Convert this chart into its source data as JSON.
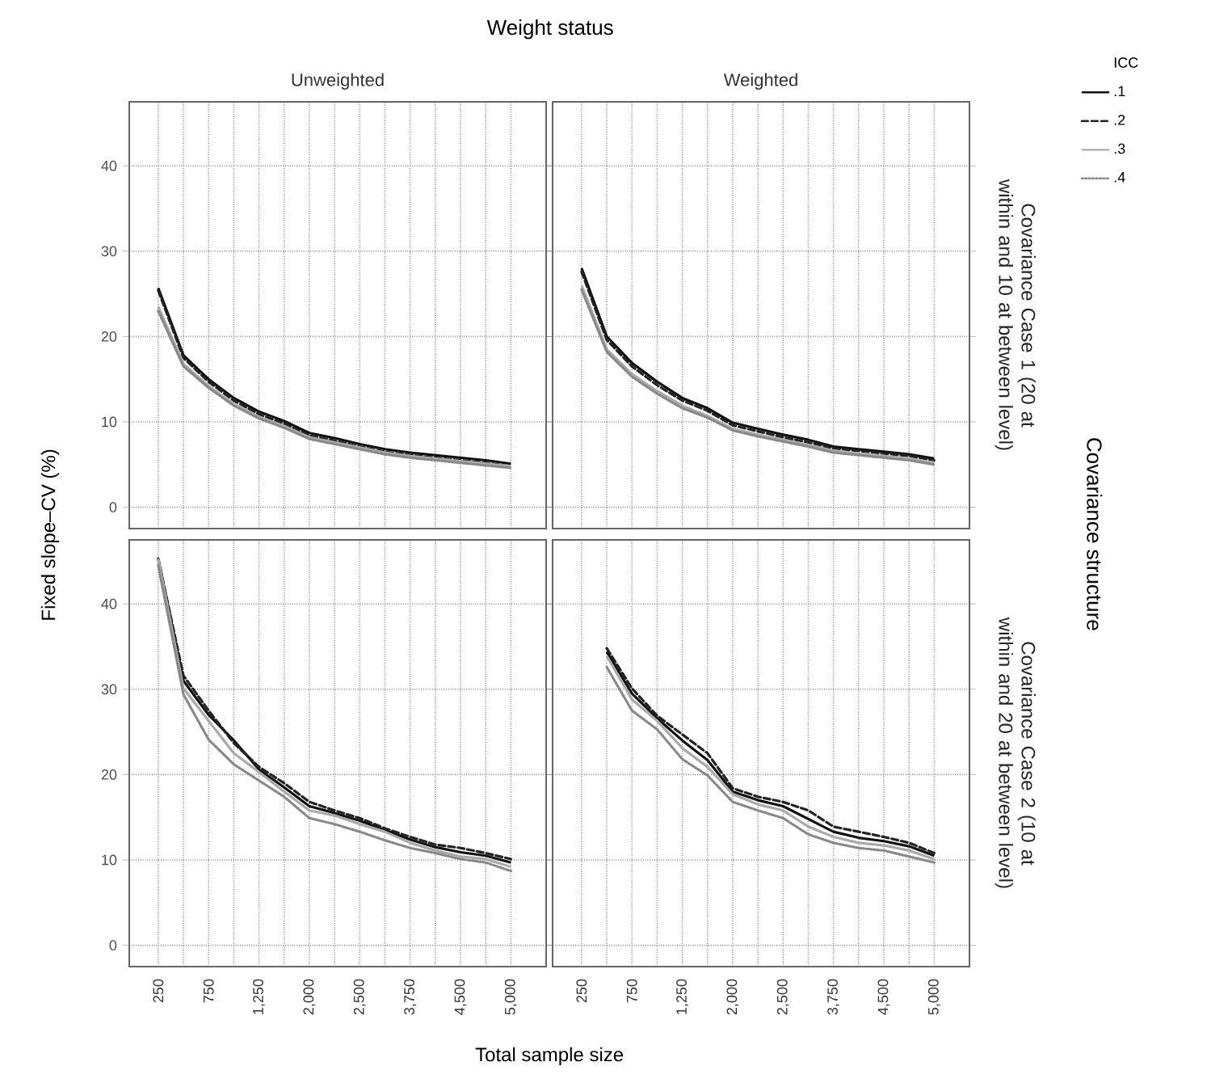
{
  "chart_data": [
    {
      "type": "line",
      "title": "Unweighted",
      "ylabel": "Fixed slope–CV (%)",
      "annotations": [
        "Weight status"
      ],
      "categories": [
        "250",
        null,
        "750",
        null,
        "1,250",
        null,
        "2,000",
        null,
        "2,500",
        null,
        "3,750",
        null,
        "4,500",
        null,
        "5,000"
      ],
      "ylim": [
        -2.5,
        47.5
      ],
      "yticks": [
        0,
        10,
        20,
        30,
        40
      ],
      "grid": true,
      "tick_labels": "y",
      "series": [
        {
          "color": "#111111",
          "line_style": "solid",
          "values": [
            25.7,
            17.8,
            15.0,
            12.8,
            11.2,
            10.1,
            8.7,
            8.1,
            7.4,
            6.8,
            6.4,
            6.1,
            5.8,
            5.5,
            5.1
          ]
        },
        {
          "color": "#222222",
          "line_style": "dashed",
          "values": [
            25.4,
            17.5,
            14.7,
            12.5,
            10.9,
            9.8,
            8.4,
            7.8,
            7.1,
            6.5,
            6.1,
            5.8,
            5.5,
            5.2,
            4.8
          ]
        },
        {
          "color": "#aaaaaa",
          "line_style": "solid",
          "values": [
            23.5,
            16.8,
            14.2,
            12.1,
            10.6,
            9.5,
            8.2,
            7.6,
            7.0,
            6.4,
            6.0,
            5.7,
            5.4,
            5.1,
            4.8
          ]
        },
        {
          "color": "#888888",
          "line_style": "dotted",
          "values": [
            23.0,
            16.5,
            14.0,
            11.9,
            10.4,
            9.3,
            8.0,
            7.4,
            6.8,
            6.2,
            5.8,
            5.5,
            5.2,
            4.9,
            4.6
          ]
        }
      ]
    },
    {
      "type": "line",
      "title": "Weighted",
      "y2label": "Covariance Case 1 (20 at within and 10 at between level)",
      "annotations": [
        "Covariance structure"
      ],
      "legend": "top right",
      "legend_title": "ICC",
      "categories": [
        "250",
        null,
        "750",
        null,
        "1,250",
        null,
        "2,000",
        null,
        "2,500",
        null,
        "3,750",
        null,
        "4,500",
        null,
        "5,000"
      ],
      "ylim": [
        -2.5,
        47.5
      ],
      "yticks": [
        0,
        10,
        20,
        30,
        40
      ],
      "grid": true,
      "tick_labels": false,
      "series": [
        {
          "name": ".1",
          "color": "#111111",
          "line_style": "solid",
          "values": [
            28.0,
            20.0,
            16.9,
            14.7,
            12.8,
            11.6,
            9.9,
            9.2,
            8.5,
            7.9,
            7.1,
            6.8,
            6.5,
            6.2,
            5.7
          ]
        },
        {
          "name": ".2",
          "color": "#222222",
          "line_style": "dashed",
          "values": [
            27.6,
            19.6,
            16.5,
            14.3,
            12.5,
            11.3,
            9.6,
            8.9,
            8.2,
            7.6,
            6.9,
            6.6,
            6.3,
            6.0,
            5.5
          ]
        },
        {
          "name": ".3",
          "color": "#aaaaaa",
          "line_style": "solid",
          "values": [
            26.0,
            18.5,
            15.6,
            13.6,
            11.9,
            10.7,
            9.2,
            8.5,
            7.9,
            7.3,
            6.6,
            6.3,
            6.0,
            5.7,
            5.2
          ]
        },
        {
          "name": ".4",
          "color": "#888888",
          "line_style": "dotted",
          "values": [
            25.5,
            18.2,
            15.3,
            13.3,
            11.6,
            10.5,
            9.0,
            8.3,
            7.7,
            7.1,
            6.4,
            6.1,
            5.8,
            5.5,
            5.0
          ]
        }
      ]
    },
    {
      "type": "line",
      "xlabel": "Total sample size",
      "categories": [
        "250",
        null,
        "750",
        null,
        "1,250",
        null,
        "2,000",
        null,
        "2,500",
        null,
        "3,750",
        null,
        "4,500",
        null,
        "5,000"
      ],
      "ylim": [
        -2.5,
        47.5
      ],
      "yticks": [
        0,
        10,
        20,
        30,
        40
      ],
      "grid": true,
      "series": [
        {
          "color": "#111111",
          "line_style": "solid",
          "values": [
            45.3,
            31.0,
            27.0,
            24.0,
            20.6,
            18.5,
            16.3,
            15.5,
            14.6,
            13.5,
            12.4,
            11.5,
            10.9,
            10.5,
            9.7
          ]
        },
        {
          "color": "#222222",
          "line_style": "dashed",
          "values": [
            45.3,
            31.6,
            27.5,
            23.7,
            20.9,
            19.0,
            16.8,
            15.8,
            14.9,
            13.7,
            12.7,
            11.8,
            11.4,
            10.8,
            10.1
          ]
        },
        {
          "color": "#aaaaaa",
          "line_style": "solid",
          "values": [
            45.3,
            30.1,
            26.3,
            22.5,
            20.3,
            18.0,
            15.8,
            15.2,
            14.2,
            13.3,
            12.0,
            11.1,
            10.4,
            10.1,
            9.2
          ]
        },
        {
          "color": "#888888",
          "line_style": "dotted",
          "values": [
            44.5,
            29.4,
            24.1,
            21.2,
            19.3,
            17.4,
            14.9,
            14.2,
            13.3,
            12.3,
            11.4,
            10.8,
            10.1,
            9.7,
            8.7
          ]
        }
      ]
    },
    {
      "type": "line",
      "y2label": "Covariance Case 2 (10 at within and 20 at between level)",
      "categories": [
        "250",
        null,
        "750",
        null,
        "1,250",
        null,
        "2,000",
        null,
        "2,500",
        null,
        "3,750",
        null,
        "4,500",
        null,
        "5,000"
      ],
      "ylim": [
        -2.5,
        47.5
      ],
      "yticks": [
        0,
        10,
        20,
        30,
        40
      ],
      "grid": true,
      "tick_labels": "x",
      "series": [
        {
          "color": "#111111",
          "line_style": "solid",
          "values": [
            null,
            34.4,
            29.5,
            26.6,
            24.0,
            21.7,
            18.0,
            17.0,
            16.3,
            14.8,
            13.3,
            12.6,
            12.2,
            11.6,
            10.5
          ]
        },
        {
          "color": "#222222",
          "line_style": "dashed",
          "values": [
            null,
            34.8,
            30.1,
            26.9,
            24.7,
            22.5,
            18.4,
            17.4,
            16.8,
            15.8,
            13.9,
            13.3,
            12.7,
            12.0,
            10.8
          ]
        },
        {
          "color": "#aaaaaa",
          "line_style": "solid",
          "values": [
            null,
            33.9,
            28.8,
            26.3,
            23.1,
            20.9,
            17.7,
            16.5,
            15.8,
            13.9,
            12.7,
            12.0,
            11.7,
            11.1,
            10.1
          ]
        },
        {
          "color": "#888888",
          "line_style": "dotted",
          "values": [
            null,
            32.6,
            27.5,
            25.3,
            21.8,
            19.9,
            16.8,
            15.8,
            14.9,
            13.0,
            12.0,
            11.4,
            11.1,
            10.4,
            9.7
          ]
        }
      ]
    }
  ]
}
